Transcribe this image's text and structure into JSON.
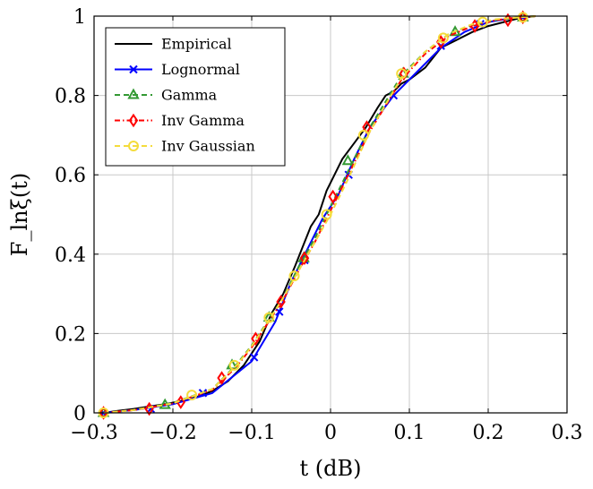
{
  "chart_data": {
    "type": "line",
    "xlabel": "t (dB)",
    "ylabel": "F_lnξ(t)",
    "xlim": [
      -0.3,
      0.3
    ],
    "ylim": [
      0,
      1
    ],
    "x_ticks": [
      -0.3,
      -0.2,
      -0.1,
      0,
      0.1,
      0.2,
      0.3
    ],
    "y_ticks": [
      0,
      0.2,
      0.4,
      0.6,
      0.8,
      1
    ],
    "x_tick_labels": [
      "−0.3",
      "−0.2",
      "−0.1",
      "0",
      "0.1",
      "0.2",
      "0.3"
    ],
    "y_tick_labels": [
      "0",
      "0.2",
      "0.4",
      "0.6",
      "0.8",
      "1"
    ],
    "grid": true,
    "legend_position": "top-left",
    "series": [
      {
        "name": "Empirical",
        "color": "#000000",
        "dash": "",
        "marker": "none",
        "x": [
          -0.288,
          -0.27,
          -0.25,
          -0.23,
          -0.21,
          -0.19,
          -0.17,
          -0.15,
          -0.13,
          -0.11,
          -0.09,
          -0.075,
          -0.06,
          -0.045,
          -0.035,
          -0.025,
          -0.015,
          -0.005,
          0.005,
          0.015,
          0.03,
          0.045,
          0.06,
          0.07,
          0.08,
          0.09,
          0.1,
          0.12,
          0.14,
          0.16,
          0.18,
          0.2,
          0.22,
          0.24,
          0.26
        ],
        "y": [
          0.0,
          0.005,
          0.01,
          0.016,
          0.022,
          0.03,
          0.04,
          0.055,
          0.08,
          0.12,
          0.18,
          0.25,
          0.3,
          0.37,
          0.42,
          0.47,
          0.5,
          0.56,
          0.6,
          0.64,
          0.68,
          0.72,
          0.77,
          0.8,
          0.81,
          0.83,
          0.84,
          0.87,
          0.92,
          0.94,
          0.96,
          0.975,
          0.985,
          0.995,
          1.0
        ]
      },
      {
        "name": "Lognormal",
        "color": "#0000ff",
        "dash": "",
        "marker": "x",
        "x": [
          -0.288,
          -0.25,
          -0.2,
          -0.15,
          -0.1,
          -0.07,
          -0.05,
          -0.03,
          -0.01,
          0.01,
          0.03,
          0.05,
          0.08,
          0.11,
          0.14,
          0.17,
          0.2,
          0.23,
          0.255
        ],
        "y": [
          0.0,
          0.007,
          0.022,
          0.05,
          0.13,
          0.23,
          0.33,
          0.41,
          0.49,
          0.55,
          0.64,
          0.72,
          0.8,
          0.86,
          0.92,
          0.96,
          0.985,
          0.995,
          0.999
        ],
        "marker_x": [
          -0.288,
          -0.228,
          -0.162,
          -0.097,
          -0.065,
          -0.033,
          0.023,
          0.08,
          0.14,
          0.19,
          0.244
        ],
        "marker_y": [
          0.0,
          0.01,
          0.05,
          0.14,
          0.255,
          0.385,
          0.6,
          0.8,
          0.925,
          0.98,
          0.997
        ]
      },
      {
        "name": "Gamma",
        "color": "#339933",
        "dash": "6,4",
        "marker": "triangle",
        "x": [
          -0.288,
          -0.25,
          -0.2,
          -0.15,
          -0.12,
          -0.1,
          -0.08,
          -0.06,
          -0.04,
          -0.02,
          0.0,
          0.02,
          0.05,
          0.09,
          0.12,
          0.15,
          0.18,
          0.21,
          0.24,
          0.26
        ],
        "y": [
          0.0,
          0.007,
          0.025,
          0.06,
          0.12,
          0.17,
          0.23,
          0.29,
          0.37,
          0.44,
          0.52,
          0.6,
          0.72,
          0.85,
          0.91,
          0.955,
          0.978,
          0.99,
          0.997,
          1.0
        ],
        "marker_x": [
          -0.288,
          -0.21,
          -0.125,
          -0.078,
          -0.034,
          0.022,
          0.092,
          0.158,
          0.244
        ],
        "marker_y": [
          0.0,
          0.02,
          0.12,
          0.24,
          0.39,
          0.635,
          0.855,
          0.96,
          0.997
        ]
      },
      {
        "name": "Inv Gamma",
        "color": "#ff0000",
        "dash": "6,3,1.5,3",
        "marker": "diamond",
        "x": [
          -0.288,
          -0.25,
          -0.2,
          -0.15,
          -0.12,
          -0.1,
          -0.08,
          -0.06,
          -0.04,
          -0.02,
          0.0,
          0.02,
          0.05,
          0.09,
          0.12,
          0.15,
          0.18,
          0.21,
          0.24,
          0.26
        ],
        "y": [
          0.0,
          0.007,
          0.024,
          0.058,
          0.115,
          0.165,
          0.225,
          0.285,
          0.36,
          0.43,
          0.51,
          0.59,
          0.71,
          0.84,
          0.905,
          0.95,
          0.975,
          0.99,
          0.997,
          1.0
        ],
        "marker_x": [
          -0.288,
          -0.23,
          -0.19,
          -0.138,
          -0.095,
          -0.063,
          -0.033,
          0.003,
          0.046,
          0.093,
          0.14,
          0.183,
          0.225,
          0.244
        ],
        "marker_y": [
          0.0,
          0.01,
          0.027,
          0.088,
          0.187,
          0.28,
          0.39,
          0.545,
          0.72,
          0.855,
          0.935,
          0.975,
          0.99,
          0.997
        ]
      },
      {
        "name": "Inv Gaussian",
        "color": "#f4dc3c",
        "dash": "6,4",
        "marker": "circle",
        "x": [
          -0.288,
          -0.25,
          -0.2,
          -0.15,
          -0.12,
          -0.1,
          -0.08,
          -0.06,
          -0.04,
          -0.02,
          0.0,
          0.02,
          0.05,
          0.09,
          0.12,
          0.15,
          0.18,
          0.21,
          0.24,
          0.26
        ],
        "y": [
          0.0,
          0.007,
          0.024,
          0.06,
          0.118,
          0.168,
          0.228,
          0.29,
          0.36,
          0.43,
          0.5,
          0.58,
          0.71,
          0.845,
          0.91,
          0.955,
          0.98,
          0.992,
          0.997,
          1.0
        ],
        "marker_x": [
          -0.288,
          -0.176,
          -0.122,
          -0.078,
          -0.046,
          -0.005,
          0.042,
          0.09,
          0.143,
          0.193,
          0.244
        ],
        "marker_y": [
          0.0,
          0.045,
          0.12,
          0.24,
          0.345,
          0.5,
          0.7,
          0.855,
          0.945,
          0.985,
          0.997
        ]
      }
    ]
  }
}
